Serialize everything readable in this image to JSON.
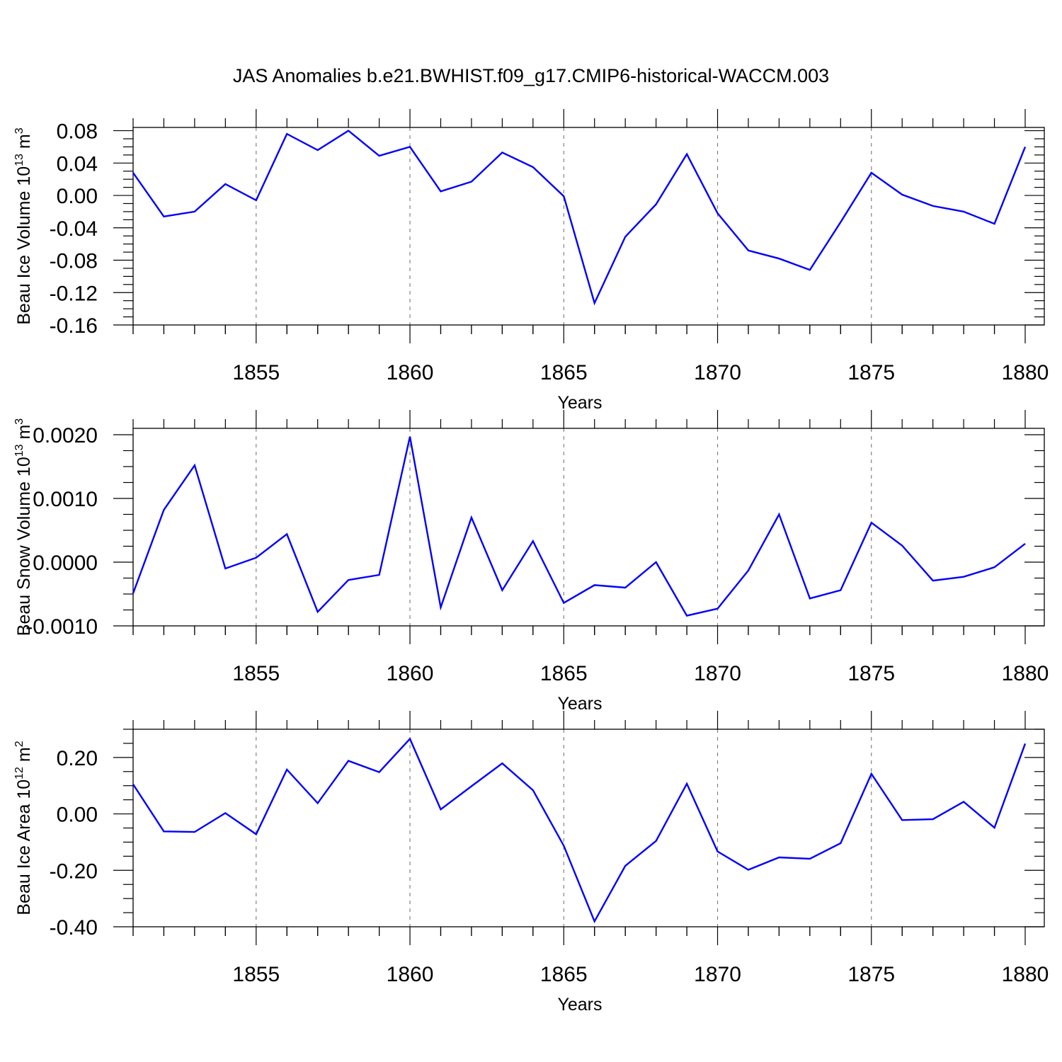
{
  "title": "JAS Anomalies b.e21.BWHIST.f09_g17.CMIP6-historical-WACCM.003",
  "line_color": "#0000ff",
  "chart_data": [
    {
      "type": "line",
      "ylabel_main": "Beau Ice Volume 10",
      "ylabel_exp": "13",
      "ylabel_unit": " m",
      "ylabel_unit_exp": "3",
      "xlabel": "Years",
      "xlim": [
        1851,
        1880
      ],
      "ylim": [
        -0.16,
        0.084
      ],
      "xticks": [
        1855,
        1860,
        1865,
        1870,
        1875,
        1880
      ],
      "xtick_labels": [
        "1855",
        "1860",
        "1865",
        "1870",
        "1875",
        "1880"
      ],
      "yticks": [
        0.08,
        0.04,
        0.0,
        -0.04,
        -0.08,
        -0.12,
        -0.16
      ],
      "ytick_labels": [
        "0.08",
        "0.04",
        "0.00",
        "-0.04",
        "-0.08",
        "-0.12",
        "-0.16"
      ],
      "grid": "dashed vertical at labeled years",
      "series": [
        {
          "name": "Beau Ice Volume",
          "x": [
            1851,
            1852,
            1853,
            1854,
            1855,
            1856,
            1857,
            1858,
            1859,
            1860,
            1861,
            1862,
            1863,
            1864,
            1865,
            1866,
            1867,
            1868,
            1869,
            1870,
            1871,
            1872,
            1873,
            1874,
            1875,
            1876,
            1877,
            1878,
            1879,
            1880
          ],
          "y": [
            0.028,
            -0.026,
            -0.02,
            0.014,
            -0.006,
            0.076,
            0.056,
            0.08,
            0.049,
            0.06,
            0.005,
            0.017,
            0.053,
            0.035,
            -0.001,
            -0.133,
            -0.051,
            -0.011,
            0.051,
            -0.022,
            -0.068,
            -0.078,
            -0.092,
            -0.033,
            0.028,
            0.001,
            -0.013,
            -0.02,
            -0.035,
            0.06
          ]
        }
      ]
    },
    {
      "type": "line",
      "ylabel_main": "Beau Snow Volume 10",
      "ylabel_exp": "13",
      "ylabel_unit": " m",
      "ylabel_unit_exp": "3",
      "xlabel": "Years",
      "xlim": [
        1851,
        1880
      ],
      "ylim": [
        -0.001,
        0.0021
      ],
      "xticks": [
        1855,
        1860,
        1865,
        1870,
        1875,
        1880
      ],
      "xtick_labels": [
        "1855",
        "1860",
        "1865",
        "1870",
        "1875",
        "1880"
      ],
      "yticks": [
        0.002,
        0.001,
        0.0,
        -0.001
      ],
      "ytick_labels": [
        "0.0020",
        "0.0010",
        "0.0000",
        "-0.0010"
      ],
      "grid": "dashed vertical at labeled years",
      "series": [
        {
          "name": "Beau Snow Volume",
          "x": [
            1851,
            1852,
            1853,
            1854,
            1855,
            1856,
            1857,
            1858,
            1859,
            1860,
            1861,
            1862,
            1863,
            1864,
            1865,
            1866,
            1867,
            1868,
            1869,
            1870,
            1871,
            1872,
            1873,
            1874,
            1875,
            1876,
            1877,
            1878,
            1879,
            1880
          ],
          "y": [
            -0.00049,
            0.00082,
            0.00152,
            -0.0001,
            7e-05,
            0.00044,
            -0.00078,
            -0.00028,
            -0.0002,
            0.00197,
            -0.00071,
            0.0007,
            -0.00044,
            0.00033,
            -0.00064,
            -0.00036,
            -0.0004,
            0.0,
            -0.00084,
            -0.00073,
            -0.00013,
            0.00075,
            -0.00057,
            -0.00044,
            0.00062,
            0.00026,
            -0.00029,
            -0.00023,
            -8e-05,
            0.00029
          ]
        }
      ]
    },
    {
      "type": "line",
      "ylabel_main": "Beau Ice Area 10",
      "ylabel_exp": "12",
      "ylabel_unit": " m",
      "ylabel_unit_exp": "2",
      "xlabel": "Years",
      "xlim": [
        1851,
        1880
      ],
      "ylim": [
        -0.4,
        0.3
      ],
      "xticks": [
        1855,
        1860,
        1865,
        1870,
        1875,
        1880
      ],
      "xtick_labels": [
        "1855",
        "1860",
        "1865",
        "1870",
        "1875",
        "1880"
      ],
      "yticks": [
        0.2,
        0.0,
        -0.2,
        -0.4
      ],
      "ytick_labels": [
        "0.20",
        "0.00",
        "-0.20",
        "-0.40"
      ],
      "grid": "dashed vertical at labeled years",
      "series": [
        {
          "name": "Beau Ice Area",
          "x": [
            1851,
            1852,
            1853,
            1854,
            1855,
            1856,
            1857,
            1858,
            1859,
            1860,
            1861,
            1862,
            1863,
            1864,
            1865,
            1866,
            1867,
            1868,
            1869,
            1870,
            1871,
            1872,
            1873,
            1874,
            1875,
            1876,
            1877,
            1878,
            1879,
            1880
          ],
          "y": [
            0.105,
            -0.062,
            -0.064,
            0.003,
            -0.072,
            0.157,
            0.038,
            0.188,
            0.148,
            0.266,
            0.016,
            0.098,
            0.179,
            0.084,
            -0.113,
            -0.381,
            -0.184,
            -0.096,
            0.107,
            -0.133,
            -0.198,
            -0.154,
            -0.159,
            -0.104,
            0.142,
            -0.022,
            -0.019,
            0.043,
            -0.049,
            0.249
          ]
        }
      ]
    }
  ]
}
